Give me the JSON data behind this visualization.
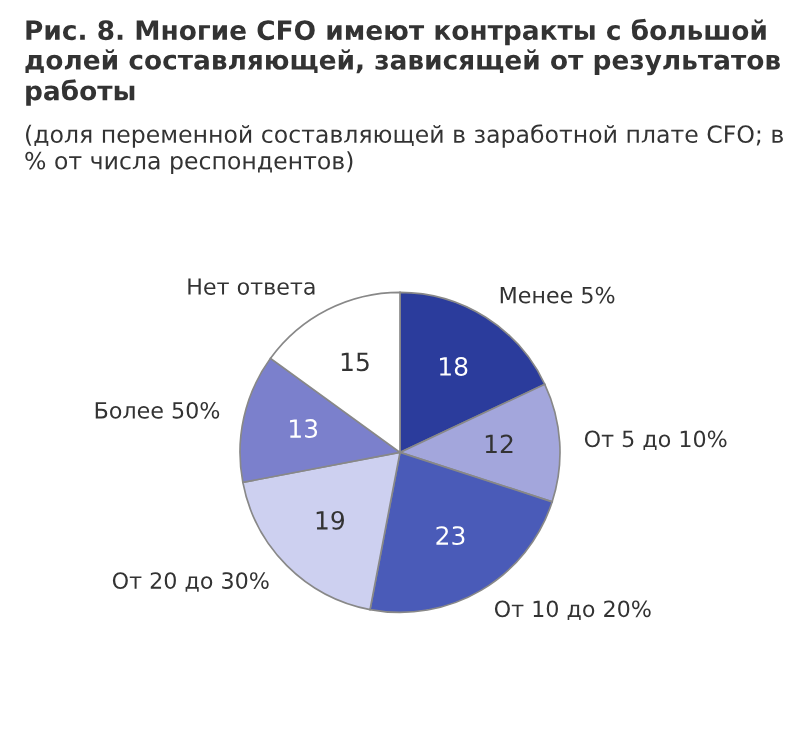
{
  "chart_data": {
    "type": "pie",
    "title": "Рис. 8. Многие CFO имеют контракты с большой долей составляющей, зависящей от результатов работы",
    "subtitle": "(доля переменной составляющей в заработной плате CFO; в % от числа респондентов)",
    "categories": [
      "Менее 5%",
      "От 5 до 10%",
      "От 10 до 20%",
      "От 20 до 30%",
      "Более 50%",
      "Нет ответа"
    ],
    "values": [
      18,
      12,
      23,
      19,
      13,
      15
    ],
    "colors": [
      "#2b3c9c",
      "#a3a6dc",
      "#4a5bb8",
      "#cdd0f0",
      "#7b80cc",
      "#ffffff"
    ],
    "data_labels": true,
    "legend": false
  }
}
